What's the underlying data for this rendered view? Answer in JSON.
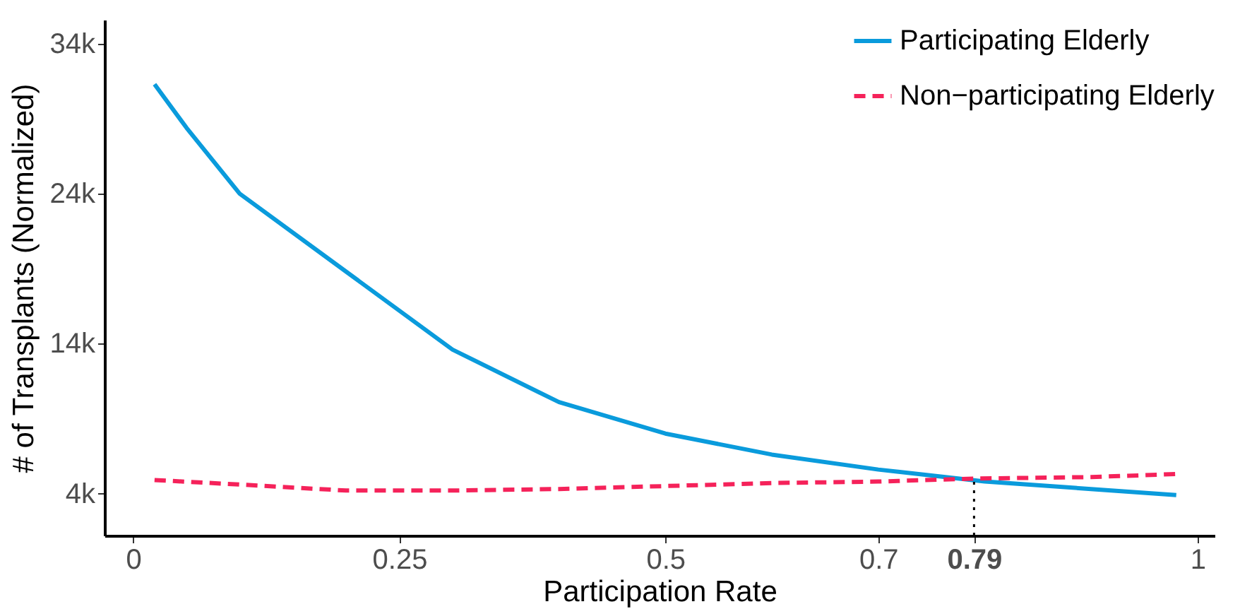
{
  "chart_data": {
    "type": "line",
    "xlabel": "Participation Rate",
    "ylabel": "# of Transplants (Normalized)",
    "series": [
      {
        "name": "Participating Elderly",
        "color": "#0a9bdc",
        "line_style": "solid",
        "x": [
          0.02,
          0.05,
          0.1,
          0.2,
          0.3,
          0.4,
          0.5,
          0.6,
          0.7,
          0.8,
          0.9,
          0.98
        ],
        "values": [
          31.3,
          28.4,
          24.0,
          18.8,
          13.6,
          10.1,
          8.0,
          6.6,
          5.6,
          4.8,
          4.3,
          3.9
        ]
      },
      {
        "name": "Non−participating Elderly",
        "color": "#f5225a",
        "line_style": "dashed",
        "x": [
          0.02,
          0.1,
          0.2,
          0.3,
          0.4,
          0.5,
          0.6,
          0.7,
          0.79,
          0.9,
          0.98
        ],
        "values": [
          4.9,
          4.6,
          4.2,
          4.2,
          4.3,
          4.5,
          4.7,
          4.8,
          5.0,
          5.1,
          5.3
        ]
      }
    ],
    "xlim": [
      -0.027,
      1.016
    ],
    "ylim": [
      1.2,
      35.6
    ],
    "xticks": [
      0,
      0.25,
      0.5,
      0.7,
      0.79,
      1
    ],
    "yticks": [
      {
        "value": 4,
        "label": "4k"
      },
      {
        "value": 14,
        "label": "14k"
      },
      {
        "value": 24,
        "label": "24k"
      },
      {
        "value": 34,
        "label": "34k"
      }
    ],
    "ref_lines": [
      {
        "axis": "x",
        "value": 0.79,
        "color": "#000000",
        "line_style": "dotted"
      }
    ],
    "grid": false,
    "legend": "top right",
    "marker": "none"
  }
}
